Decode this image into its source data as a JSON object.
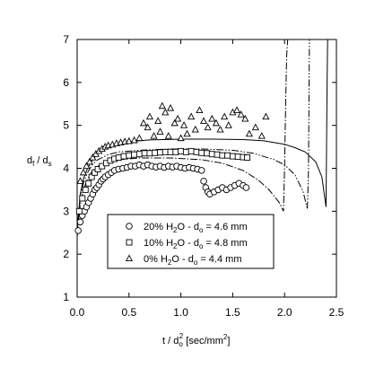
{
  "chart_data": {
    "type": "scatter",
    "xlabel": "t / d",
    "xlabel_sub": "o",
    "xlabel_sup": "2",
    "xlabel_units": " [sec/mm",
    "xlabel_units_sup": "2",
    "xlabel_units_end": "]",
    "ylabel": "d",
    "ylabel_sub1": "f",
    "ylabel_mid": " / d",
    "ylabel_sub2": "s",
    "xlim": [
      0.0,
      2.5
    ],
    "ylim": [
      1,
      7
    ],
    "x_ticks": [
      "0.0",
      "0.5",
      "1.0",
      "1.5",
      "2.0",
      "2.5"
    ],
    "y_ticks": [
      "1",
      "2",
      "3",
      "4",
      "5",
      "6",
      "7"
    ],
    "grid": false,
    "legend_position": "bottom-center",
    "legend": [
      {
        "marker": "circle",
        "pre": "20% H",
        "sub": "2",
        "mid": "O - d",
        "sub2": "o",
        "post": " = 4.6 mm"
      },
      {
        "marker": "square",
        "pre": "10% H",
        "sub": "2",
        "mid": "O - d",
        "sub2": "o",
        "post": " = 4.8 mm"
      },
      {
        "marker": "triangle",
        "pre": "0% H",
        "sub": "2",
        "mid": "O - d",
        "sub2": "o",
        "post": " = 4.4 mm"
      }
    ],
    "series": [
      {
        "marker": "circle",
        "points": [
          [
            0.01,
            2.55
          ],
          [
            0.03,
            2.75
          ],
          [
            0.05,
            2.9
          ],
          [
            0.07,
            3.0
          ],
          [
            0.09,
            3.1
          ],
          [
            0.11,
            3.2
          ],
          [
            0.13,
            3.3
          ],
          [
            0.15,
            3.4
          ],
          [
            0.17,
            3.5
          ],
          [
            0.19,
            3.55
          ],
          [
            0.21,
            3.62
          ],
          [
            0.23,
            3.7
          ],
          [
            0.25,
            3.75
          ],
          [
            0.27,
            3.8
          ],
          [
            0.3,
            3.85
          ],
          [
            0.33,
            3.9
          ],
          [
            0.36,
            3.95
          ],
          [
            0.4,
            3.98
          ],
          [
            0.44,
            4.0
          ],
          [
            0.48,
            4.02
          ],
          [
            0.52,
            4.05
          ],
          [
            0.56,
            4.05
          ],
          [
            0.6,
            4.08
          ],
          [
            0.64,
            4.05
          ],
          [
            0.68,
            4.08
          ],
          [
            0.72,
            4.05
          ],
          [
            0.76,
            4.03
          ],
          [
            0.8,
            4.05
          ],
          [
            0.84,
            4.02
          ],
          [
            0.88,
            4.05
          ],
          [
            0.92,
            4.03
          ],
          [
            0.96,
            4.05
          ],
          [
            1.0,
            4.02
          ],
          [
            1.04,
            4.0
          ],
          [
            1.08,
            4.02
          ],
          [
            1.12,
            4.0
          ],
          [
            1.16,
            3.98
          ],
          [
            1.2,
            3.95
          ],
          [
            1.22,
            3.7
          ],
          [
            1.24,
            3.55
          ],
          [
            1.26,
            3.45
          ],
          [
            1.28,
            3.4
          ],
          [
            1.32,
            3.45
          ],
          [
            1.36,
            3.5
          ],
          [
            1.4,
            3.55
          ],
          [
            1.44,
            3.5
          ],
          [
            1.48,
            3.55
          ],
          [
            1.52,
            3.6
          ],
          [
            1.56,
            3.65
          ],
          [
            1.6,
            3.6
          ],
          [
            1.63,
            3.55
          ]
        ]
      },
      {
        "marker": "square",
        "points": [
          [
            0.02,
            3.0
          ],
          [
            0.05,
            3.3
          ],
          [
            0.08,
            3.5
          ],
          [
            0.11,
            3.65
          ],
          [
            0.14,
            3.8
          ],
          [
            0.17,
            3.9
          ],
          [
            0.2,
            3.98
          ],
          [
            0.24,
            4.05
          ],
          [
            0.28,
            4.12
          ],
          [
            0.32,
            4.18
          ],
          [
            0.36,
            4.22
          ],
          [
            0.4,
            4.25
          ],
          [
            0.45,
            4.28
          ],
          [
            0.5,
            4.3
          ],
          [
            0.55,
            4.32
          ],
          [
            0.6,
            4.33
          ],
          [
            0.65,
            4.35
          ],
          [
            0.7,
            4.35
          ],
          [
            0.75,
            4.36
          ],
          [
            0.8,
            4.37
          ],
          [
            0.85,
            4.38
          ],
          [
            0.9,
            4.38
          ],
          [
            0.95,
            4.38
          ],
          [
            1.0,
            4.4
          ],
          [
            1.05,
            4.38
          ],
          [
            1.1,
            4.4
          ],
          [
            1.15,
            4.38
          ],
          [
            1.2,
            4.36
          ],
          [
            1.25,
            4.35
          ],
          [
            1.3,
            4.33
          ],
          [
            1.35,
            4.32
          ],
          [
            1.4,
            4.3
          ],
          [
            1.45,
            4.3
          ],
          [
            1.5,
            4.28
          ],
          [
            1.55,
            4.27
          ],
          [
            1.6,
            4.26
          ],
          [
            1.64,
            4.25
          ]
        ]
      },
      {
        "marker": "triangle",
        "points": [
          [
            0.03,
            3.7
          ],
          [
            0.06,
            3.9
          ],
          [
            0.09,
            4.05
          ],
          [
            0.12,
            4.15
          ],
          [
            0.15,
            4.25
          ],
          [
            0.18,
            4.33
          ],
          [
            0.21,
            4.4
          ],
          [
            0.24,
            4.45
          ],
          [
            0.27,
            4.5
          ],
          [
            0.3,
            4.53
          ],
          [
            0.34,
            4.55
          ],
          [
            0.38,
            4.58
          ],
          [
            0.42,
            4.6
          ],
          [
            0.46,
            4.62
          ],
          [
            0.5,
            4.63
          ],
          [
            0.55,
            4.65
          ],
          [
            0.6,
            4.7
          ],
          [
            0.64,
            5.05
          ],
          [
            0.68,
            4.95
          ],
          [
            0.7,
            5.2
          ],
          [
            0.74,
            4.75
          ],
          [
            0.78,
            5.1
          ],
          [
            0.8,
            4.85
          ],
          [
            0.82,
            5.45
          ],
          [
            0.85,
            5.3
          ],
          [
            0.88,
            4.75
          ],
          [
            0.9,
            5.4
          ],
          [
            0.94,
            5.05
          ],
          [
            0.97,
            5.15
          ],
          [
            1.0,
            4.7
          ],
          [
            1.03,
            5.0
          ],
          [
            1.06,
            4.8
          ],
          [
            1.1,
            5.2
          ],
          [
            1.14,
            4.9
          ],
          [
            1.18,
            5.35
          ],
          [
            1.22,
            5.1
          ],
          [
            1.26,
            4.95
          ],
          [
            1.3,
            5.15
          ],
          [
            1.34,
            5.05
          ],
          [
            1.38,
            4.9
          ],
          [
            1.42,
            5.2
          ],
          [
            1.46,
            5.0
          ],
          [
            1.5,
            5.3
          ],
          [
            1.54,
            5.35
          ],
          [
            1.58,
            5.25
          ],
          [
            1.62,
            5.15
          ],
          [
            1.66,
            4.8
          ],
          [
            1.72,
            4.95
          ],
          [
            1.78,
            4.75
          ],
          [
            1.82,
            5.2
          ]
        ]
      }
    ],
    "model_curves": [
      {
        "style": "solid",
        "points": [
          [
            0.0,
            2.6
          ],
          [
            0.03,
            3.4
          ],
          [
            0.06,
            3.75
          ],
          [
            0.1,
            4.0
          ],
          [
            0.15,
            4.2
          ],
          [
            0.2,
            4.35
          ],
          [
            0.3,
            4.5
          ],
          [
            0.4,
            4.58
          ],
          [
            0.5,
            4.62
          ],
          [
            0.7,
            4.66
          ],
          [
            1.0,
            4.68
          ],
          [
            1.3,
            4.68
          ],
          [
            1.6,
            4.67
          ],
          [
            1.8,
            4.64
          ],
          [
            2.0,
            4.56
          ],
          [
            2.1,
            4.48
          ],
          [
            2.2,
            4.38
          ],
          [
            2.3,
            4.15
          ],
          [
            2.36,
            3.8
          ],
          [
            2.4,
            3.1
          ],
          [
            2.405,
            4.5
          ],
          [
            2.41,
            6.0
          ],
          [
            2.415,
            7.0
          ]
        ]
      },
      {
        "style": "dash-dot-dot",
        "points": [
          [
            0.0,
            2.5
          ],
          [
            0.03,
            3.3
          ],
          [
            0.06,
            3.65
          ],
          [
            0.1,
            3.9
          ],
          [
            0.15,
            4.1
          ],
          [
            0.2,
            4.2
          ],
          [
            0.3,
            4.32
          ],
          [
            0.4,
            4.38
          ],
          [
            0.6,
            4.42
          ],
          [
            0.9,
            4.45
          ],
          [
            1.2,
            4.45
          ],
          [
            1.5,
            4.42
          ],
          [
            1.7,
            4.35
          ],
          [
            1.9,
            4.2
          ],
          [
            2.0,
            4.08
          ],
          [
            2.1,
            3.85
          ],
          [
            2.18,
            3.45
          ],
          [
            2.22,
            3.05
          ],
          [
            2.23,
            3.9
          ],
          [
            2.235,
            5.5
          ],
          [
            2.24,
            7.0
          ]
        ]
      },
      {
        "style": "dash-dot",
        "points": [
          [
            0.0,
            2.4
          ],
          [
            0.03,
            3.15
          ],
          [
            0.06,
            3.5
          ],
          [
            0.1,
            3.75
          ],
          [
            0.15,
            3.95
          ],
          [
            0.2,
            4.05
          ],
          [
            0.3,
            4.15
          ],
          [
            0.4,
            4.2
          ],
          [
            0.6,
            4.24
          ],
          [
            0.9,
            4.24
          ],
          [
            1.2,
            4.2
          ],
          [
            1.4,
            4.12
          ],
          [
            1.6,
            3.95
          ],
          [
            1.75,
            3.72
          ],
          [
            1.85,
            3.5
          ],
          [
            1.95,
            3.2
          ],
          [
            1.99,
            3.0
          ],
          [
            2.0,
            4.0
          ],
          [
            2.01,
            5.5
          ],
          [
            2.02,
            6.6
          ],
          [
            2.03,
            7.0
          ]
        ]
      }
    ]
  }
}
